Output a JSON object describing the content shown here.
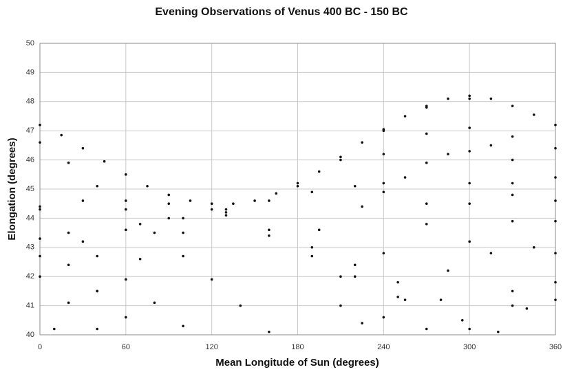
{
  "chart_data": {
    "type": "scatter",
    "title": "Evening Observations of Venus 400 BC - 150 BC",
    "x_label": "Mean Longitude of Sun (degrees)",
    "y_label": "Elongation (degrees)",
    "xlim": [
      0,
      360
    ],
    "xticks": [
      0,
      60,
      120,
      180,
      240,
      300,
      360
    ],
    "ylim": [
      40,
      50
    ],
    "yticks": [
      40,
      41,
      42,
      43,
      44,
      45,
      46,
      47,
      48,
      49,
      50
    ],
    "grid": true,
    "color": "#111111",
    "series": [
      {
        "x": [
          0,
          15,
          30,
          45,
          60,
          75,
          90,
          105,
          120,
          135,
          150,
          165,
          180,
          195,
          210,
          225,
          240,
          255,
          270,
          285,
          300,
          315,
          330,
          345,
          360
        ],
        "values": [
          47.2,
          46.85,
          46.4,
          45.95,
          45.5,
          45.1,
          44.8,
          44.6,
          44.5,
          44.5,
          44.6,
          44.85,
          45.2,
          45.6,
          46.1,
          46.6,
          47.05,
          47.5,
          47.85,
          48.1,
          48.2,
          48.1,
          47.85,
          47.55,
          47.2
        ]
      },
      {
        "x": [
          0,
          20,
          40,
          60,
          80,
          100,
          120,
          140,
          160
        ],
        "values": [
          46.6,
          45.9,
          45.1,
          44.3,
          43.5,
          42.7,
          41.9,
          41.0,
          40.1
        ]
      },
      {
        "x": [
          0,
          20,
          40,
          60,
          80,
          100
        ],
        "values": [
          44.3,
          43.5,
          42.7,
          41.9,
          41.1,
          40.3
        ]
      },
      {
        "x": [
          0,
          20,
          40,
          60
        ],
        "values": [
          43.3,
          42.4,
          41.5,
          40.6
        ]
      },
      {
        "x": [
          0,
          20,
          40
        ],
        "values": [
          42.0,
          41.1,
          40.2
        ]
      },
      {
        "x": [
          10,
          40,
          70,
          100,
          130
        ],
        "values": [
          40.2,
          41.5,
          42.6,
          43.5,
          44.2
        ]
      },
      {
        "x": [
          0,
          30,
          60,
          90
        ],
        "values": [
          42.7,
          43.2,
          43.6,
          44.0
        ]
      },
      {
        "x": [
          0,
          30,
          60,
          90,
          120
        ],
        "values": [
          44.4,
          44.6,
          44.6,
          44.5,
          44.3
        ]
      },
      {
        "x": [
          70,
          100,
          130,
          160,
          190,
          220,
          240
        ],
        "values": [
          43.8,
          44.0,
          44.3,
          44.6,
          44.9,
          45.1,
          45.2
        ]
      },
      {
        "x": [
          130,
          160,
          190,
          220,
          250
        ],
        "values": [
          44.1,
          43.4,
          42.7,
          42.0,
          41.3
        ]
      },
      {
        "x": [
          160,
          190,
          220,
          250,
          280
        ],
        "values": [
          43.6,
          43.0,
          42.4,
          41.8,
          41.2
        ]
      },
      {
        "x": [
          210,
          240,
          270
        ],
        "values": [
          41.0,
          40.6,
          40.2
        ]
      },
      {
        "x": [
          180,
          195,
          210,
          225
        ],
        "values": [
          45.1,
          43.6,
          42.0,
          40.4
        ]
      },
      {
        "x": [
          210,
          225,
          240,
          255
        ],
        "values": [
          46.0,
          44.4,
          42.8,
          41.2
        ]
      },
      {
        "x": [
          240,
          255,
          270,
          285,
          295
        ],
        "values": [
          47.0,
          45.4,
          43.8,
          42.2,
          40.5
        ]
      },
      {
        "x": [
          270,
          285,
          300,
          315,
          330
        ],
        "values": [
          47.8,
          46.2,
          44.5,
          42.8,
          41.0
        ]
      },
      {
        "x": [
          300,
          315,
          330,
          345,
          360
        ],
        "values": [
          48.1,
          46.5,
          44.8,
          43.0,
          41.2
        ]
      },
      {
        "x": [
          240,
          270,
          300,
          330,
          360
        ],
        "values": [
          46.2,
          46.9,
          47.1,
          46.8,
          46.4
        ]
      },
      {
        "x": [
          240,
          270,
          300,
          330,
          360
        ],
        "values": [
          44.9,
          45.9,
          46.3,
          46.0,
          45.4
        ]
      },
      {
        "x": [
          270,
          300,
          330,
          360
        ],
        "values": [
          44.5,
          45.2,
          45.2,
          44.6
        ]
      },
      {
        "x": [
          300,
          330,
          360
        ],
        "values": [
          43.2,
          43.9,
          43.9
        ]
      },
      {
        "x": [
          300,
          330,
          360
        ],
        "values": [
          40.2,
          41.5,
          42.8
        ]
      },
      {
        "x": [
          320,
          340,
          360
        ],
        "values": [
          40.1,
          40.9,
          41.8
        ]
      }
    ]
  }
}
